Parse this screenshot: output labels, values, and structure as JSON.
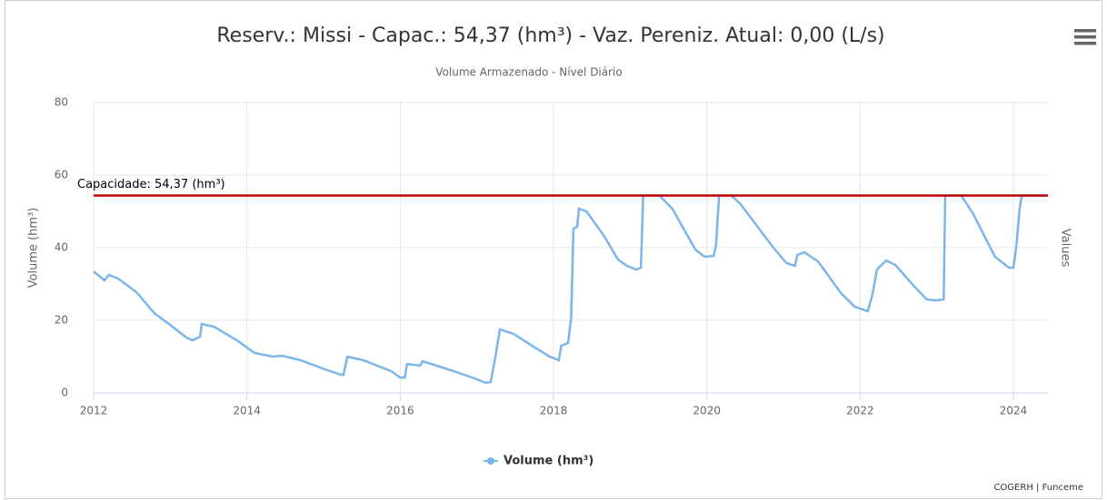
{
  "chart_data": {
    "type": "line",
    "title": "Reserv.: Missi - Capac.: 54,37 (hm³) - Vaz. Pereniz. Atual: 0,00 (L/s)",
    "subtitle": "Volume Armazenado - Nível Diário",
    "y_label": "Volume (hm³)",
    "y2_label": "Values",
    "credits": "COGERH | Funceme",
    "xlim": [
      2012,
      2024.45
    ],
    "xticks": [
      2012,
      2014,
      2016,
      2018,
      2020,
      2022,
      2024
    ],
    "ylim": [
      0,
      80
    ],
    "yticks": [
      0,
      20,
      40,
      60,
      80
    ],
    "grid": true,
    "legend": "bottom",
    "plot_lines": [
      {
        "value": 54.37,
        "label": "Capacidade: 54,37 (hm³)",
        "color": "#c00000"
      }
    ],
    "series": [
      {
        "name": "Volume (hm³)",
        "color": "#7cb5ec",
        "x": [
          2012.0,
          2012.14,
          2012.2,
          2012.32,
          2012.56,
          2012.79,
          2013.03,
          2013.21,
          2013.29,
          2013.39,
          2013.41,
          2013.57,
          2013.87,
          2014.1,
          2014.34,
          2014.46,
          2014.7,
          2015.05,
          2015.23,
          2015.26,
          2015.31,
          2015.52,
          2015.88,
          2016.0,
          2016.06,
          2016.09,
          2016.26,
          2016.29,
          2016.59,
          2016.94,
          2017.12,
          2017.18,
          2017.24,
          2017.3,
          2017.48,
          2017.72,
          2017.95,
          2018.07,
          2018.1,
          2018.19,
          2018.23,
          2018.26,
          2018.31,
          2018.33,
          2018.43,
          2018.66,
          2018.84,
          2018.96,
          2019.08,
          2019.14,
          2019.17,
          2019.38,
          2019.55,
          2019.85,
          2019.97,
          2020.09,
          2020.12,
          2020.16,
          2020.32,
          2020.44,
          2020.86,
          2021.04,
          2021.15,
          2021.18,
          2021.27,
          2021.45,
          2021.75,
          2021.93,
          2022.1,
          2022.16,
          2022.22,
          2022.34,
          2022.46,
          2022.7,
          2022.87,
          2022.99,
          2023.09,
          2023.11,
          2023.32,
          2023.47,
          2023.76,
          2023.94,
          2024.0,
          2024.04,
          2024.08,
          2024.11,
          2024.45
        ],
        "values": [
          33.5,
          31,
          32.5,
          31.5,
          27.75,
          22,
          18.25,
          15.25,
          14.5,
          15.5,
          19,
          18.25,
          14.5,
          11,
          10,
          10.25,
          9,
          6.25,
          5,
          5,
          10,
          9,
          6,
          4.25,
          4.25,
          8,
          7.5,
          8.75,
          6.75,
          4.25,
          2.75,
          3,
          9.75,
          17.5,
          16.25,
          13,
          10,
          9,
          13,
          13.75,
          20.75,
          45.25,
          45.75,
          50.75,
          50,
          43.25,
          36.75,
          35,
          34,
          34.5,
          54.37,
          54.37,
          50.75,
          39.5,
          37.5,
          37.75,
          40.75,
          54.37,
          54.37,
          52,
          40.25,
          35.75,
          35,
          38,
          38.75,
          36.25,
          27.5,
          23.75,
          22.5,
          27,
          34,
          36.5,
          35.25,
          29.5,
          25.75,
          25.5,
          25.75,
          54.37,
          54.37,
          49.5,
          37.5,
          34.5,
          34.5,
          40.75,
          50.75,
          54.37,
          54.37
        ]
      }
    ]
  }
}
